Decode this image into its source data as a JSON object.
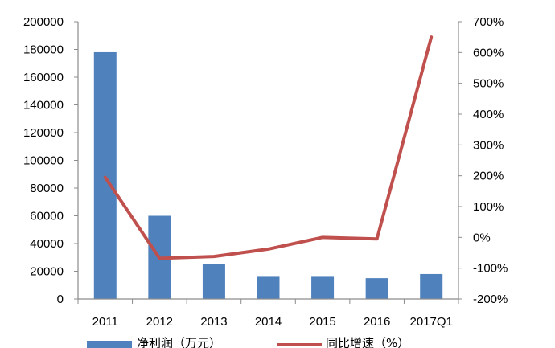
{
  "chart_data": {
    "type": "bar",
    "categories": [
      "2011",
      "2012",
      "2013",
      "2014",
      "2015",
      "2016",
      "2017Q1"
    ],
    "series": [
      {
        "name": "净利润（万元）",
        "type": "bar",
        "axis": "left",
        "color": "#4f81bd",
        "values": [
          178000,
          60000,
          25000,
          16000,
          16000,
          15000,
          18000
        ]
      },
      {
        "name": "同比增速（%）",
        "type": "line",
        "axis": "right",
        "color": "#c0504d",
        "values": [
          195,
          -68,
          -62,
          -38,
          0,
          -5,
          650
        ]
      }
    ],
    "y_left": {
      "min": 0,
      "max": 200000,
      "step": 20000,
      "ticks": [
        "0",
        "20000",
        "40000",
        "60000",
        "80000",
        "100000",
        "120000",
        "140000",
        "160000",
        "180000",
        "200000"
      ]
    },
    "y_right": {
      "min": -200,
      "max": 700,
      "step": 100,
      "ticks": [
        "-200%",
        "-100%",
        "0%",
        "100%",
        "200%",
        "300%",
        "400%",
        "500%",
        "600%",
        "700%"
      ]
    },
    "legend_position": "bottom",
    "grid": false
  }
}
